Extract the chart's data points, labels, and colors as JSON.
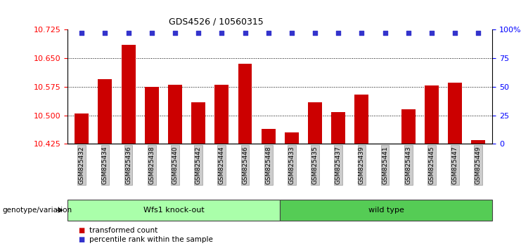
{
  "title": "GDS4526 / 10560315",
  "samples": [
    "GSM825432",
    "GSM825434",
    "GSM825436",
    "GSM825438",
    "GSM825440",
    "GSM825442",
    "GSM825444",
    "GSM825446",
    "GSM825448",
    "GSM825433",
    "GSM825435",
    "GSM825437",
    "GSM825439",
    "GSM825441",
    "GSM825443",
    "GSM825445",
    "GSM825447",
    "GSM825449"
  ],
  "bar_values": [
    10.505,
    10.595,
    10.685,
    10.575,
    10.58,
    10.535,
    10.58,
    10.635,
    10.465,
    10.455,
    10.535,
    10.508,
    10.555,
    10.426,
    10.515,
    10.578,
    10.585,
    10.435
  ],
  "ylim_left": [
    10.425,
    10.725
  ],
  "ylim_right": [
    0,
    100
  ],
  "yticks_left": [
    10.425,
    10.5,
    10.575,
    10.65,
    10.725
  ],
  "yticks_right": [
    0,
    25,
    50,
    75,
    100
  ],
  "bar_color": "#cc0000",
  "percentile_color": "#3333cc",
  "group1_label": "Wfs1 knock-out",
  "group1_count": 9,
  "group2_label": "wild type",
  "group2_count": 9,
  "group1_color": "#aaffaa",
  "group2_color": "#55cc55",
  "legend_bar_label": "transformed count",
  "legend_pct_label": "percentile rank within the sample",
  "bg_color": "#ffffff"
}
